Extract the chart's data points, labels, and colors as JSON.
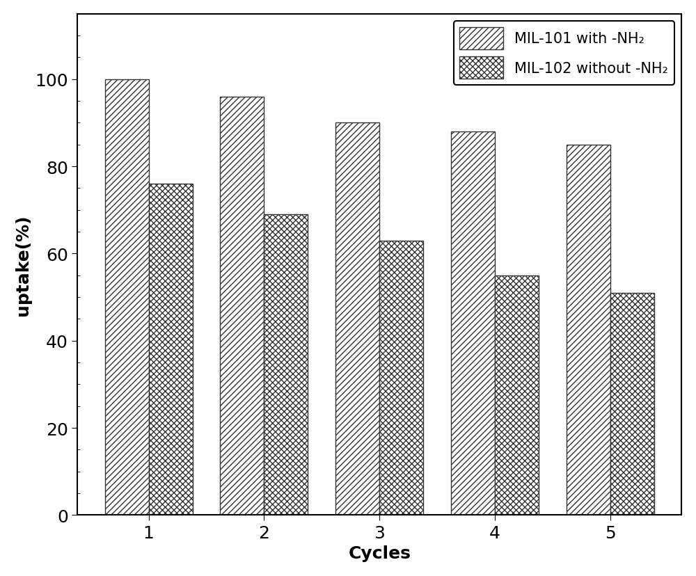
{
  "categories": [
    1,
    2,
    3,
    4,
    5
  ],
  "mil101_values": [
    100,
    96,
    90,
    88,
    85
  ],
  "mil102_values": [
    76,
    69,
    63,
    55,
    51
  ],
  "xlabel": "Cycles",
  "ylabel": "uptake(%)",
  "ylim": [
    0,
    115
  ],
  "yticks": [
    0,
    20,
    40,
    60,
    80,
    100
  ],
  "legend_labels": [
    "MIL-101 with -NH₂",
    "MIL-102 without -NH₂"
  ],
  "bar_color": "white",
  "edge_color": "#333333",
  "hatch1": "////",
  "hatch2": "////\\\\\\\\",
  "bar_width": 0.38,
  "label_fontsize": 18,
  "tick_fontsize": 18,
  "legend_fontsize": 15,
  "background_color": "#ffffff"
}
